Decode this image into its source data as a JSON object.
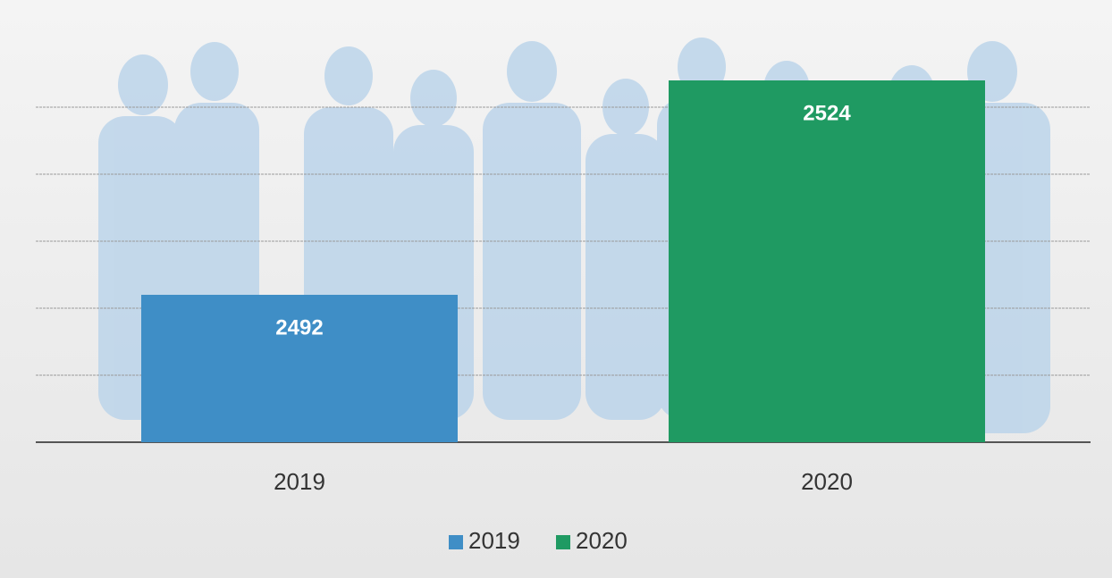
{
  "chart_data": {
    "type": "bar",
    "categories": [
      "2019",
      "2020"
    ],
    "values": [
      2492,
      2524
    ],
    "colors": [
      "#3f8ec6",
      "#1f9a62"
    ],
    "ylim": [
      2470,
      2530
    ],
    "yticks": [
      2470,
      2480,
      2490,
      2500,
      2510,
      2520
    ],
    "grid": true,
    "legend": "bottom"
  }
}
